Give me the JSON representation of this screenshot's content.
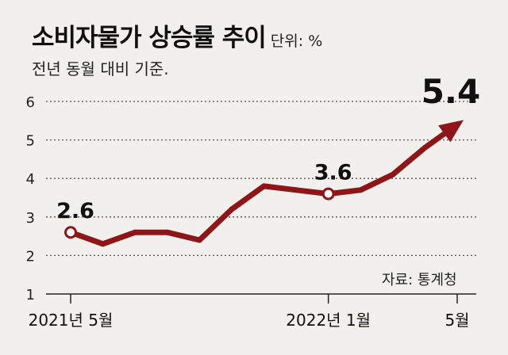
{
  "header": {
    "title": "소비자물가 상승률 추이",
    "unit": "단위: %",
    "subtitle": "전년 동월 대비 기준."
  },
  "source": "자료: 통계청",
  "colors": {
    "line": "#8e1619",
    "background": "#f1f0ec",
    "grid": "#555555",
    "text": "#111111"
  },
  "chart_data": {
    "type": "line",
    "title": "소비자물가 상승률 추이",
    "xlabel": "",
    "ylabel": "",
    "ylim": [
      1,
      6
    ],
    "yticks": [
      1,
      2,
      3,
      4,
      5,
      6
    ],
    "grid": true,
    "x": [
      "2021-05",
      "2021-06",
      "2021-07",
      "2021-08",
      "2021-09",
      "2021-10",
      "2021-11",
      "2021-12",
      "2022-01",
      "2022-02",
      "2022-03",
      "2022-04",
      "2022-05"
    ],
    "xtick_labels": [
      {
        "at": 0,
        "label": "2021년 5월"
      },
      {
        "at": 8,
        "label": "2022년 1월"
      },
      {
        "at": 12,
        "label": "5월"
      }
    ],
    "series": [
      {
        "values": [
          2.6,
          2.3,
          2.6,
          2.6,
          2.4,
          3.2,
          3.8,
          3.7,
          3.6,
          3.7,
          4.1,
          4.8,
          5.4
        ]
      }
    ],
    "annotations": [
      {
        "at": 0,
        "label": "2.6",
        "marker": true
      },
      {
        "at": 8,
        "label": "3.6",
        "marker": true
      },
      {
        "at": 12,
        "label": "5.4",
        "marker": false,
        "arrow": true
      }
    ]
  }
}
